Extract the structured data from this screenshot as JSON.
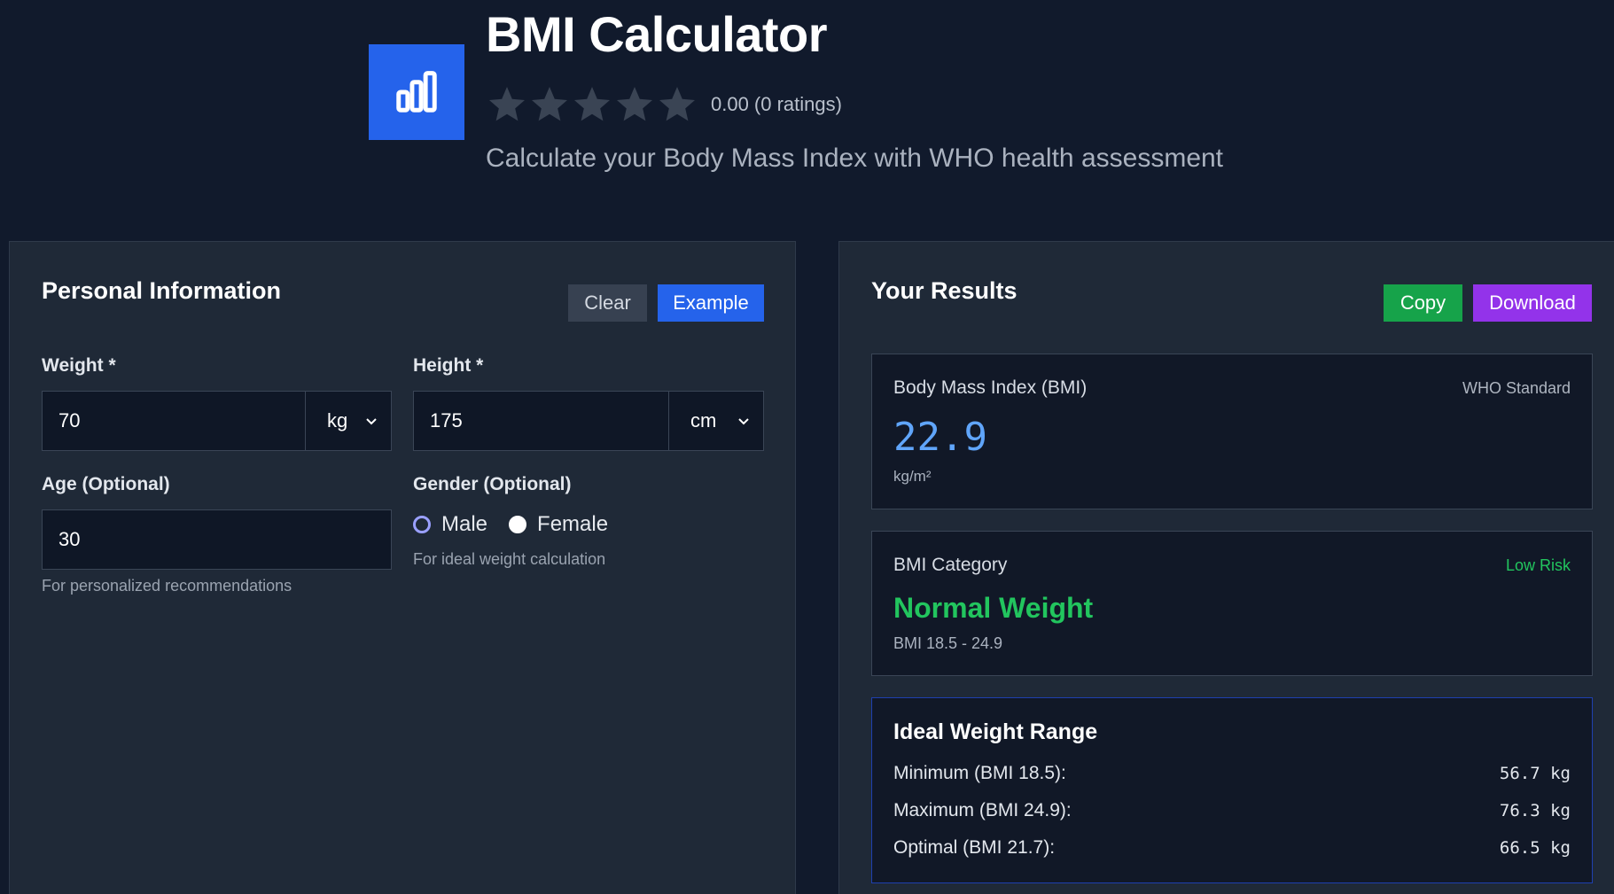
{
  "header": {
    "title": "BMI Calculator",
    "icon": "bar-chart-icon",
    "rating_text": "0.00 (0 ratings)",
    "rating_value": 0,
    "star_count": 5,
    "subtitle": "Calculate your Body Mass Index with WHO health assessment"
  },
  "personal": {
    "title": "Personal Information",
    "clear_label": "Clear",
    "example_label": "Example",
    "weight": {
      "label": "Weight *",
      "value": "70",
      "unit": "kg"
    },
    "height": {
      "label": "Height *",
      "value": "175",
      "unit": "cm"
    },
    "age": {
      "label": "Age (Optional)",
      "value": "30",
      "hint": "For personalized recommendations"
    },
    "gender": {
      "label": "Gender (Optional)",
      "options": [
        "Male",
        "Female"
      ],
      "hint": "For ideal weight calculation"
    }
  },
  "results": {
    "title": "Your Results",
    "copy_label": "Copy",
    "download_label": "Download",
    "bmi": {
      "label": "Body Mass Index (BMI)",
      "tag": "WHO Standard",
      "value": "22.9",
      "unit": "kg/m²"
    },
    "category": {
      "label": "BMI Category",
      "tag": "Low Risk",
      "value": "Normal Weight",
      "range": "BMI 18.5 - 24.9"
    },
    "ideal": {
      "title": "Ideal Weight Range",
      "rows": [
        {
          "label": "Minimum (BMI 18.5):",
          "value": "56.7 kg"
        },
        {
          "label": "Maximum (BMI 24.9):",
          "value": "76.3 kg"
        },
        {
          "label": "Optimal (BMI 21.7):",
          "value": "66.5 kg"
        }
      ]
    }
  },
  "colors": {
    "background": "#111a2c",
    "panel": "#1f2937",
    "accent_blue": "#2563eb",
    "bmi_value": "#60a5fa",
    "success": "#22c55e",
    "copy_button": "#16a34a",
    "download_button": "#9333ea"
  }
}
